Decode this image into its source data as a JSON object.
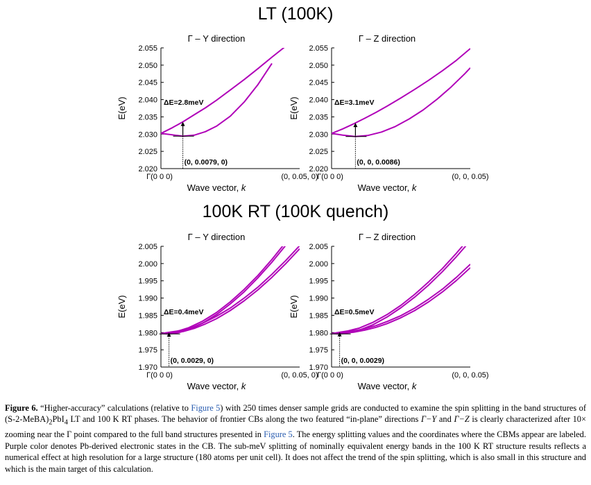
{
  "titles": {
    "top": "LT (100K)",
    "bottom": "100K RT (100K quench)"
  },
  "colors": {
    "band": "#b000b8"
  },
  "chart_data": [
    {
      "type": "line",
      "title": "Γ – Y direction",
      "ylabel": "E(eV)",
      "xlabel": "Wave vector, k",
      "x_tick_labels": [
        "Γ(0 0 0)",
        "(0, 0.05, 0)"
      ],
      "xlim": [
        0,
        0.05
      ],
      "ylim": [
        2.02,
        2.055
      ],
      "yticks": [
        "2.055",
        "2.050",
        "2.045",
        "2.040",
        "2.035",
        "2.030",
        "2.025",
        "2.020"
      ],
      "series": [
        {
          "x": [
            0,
            0.004,
            0.0079,
            0.012,
            0.016,
            0.02,
            0.025,
            0.03,
            0.035,
            0.04
          ],
          "values": [
            2.0302,
            2.0298,
            2.0294,
            2.0297,
            2.0307,
            2.0323,
            2.0352,
            2.0393,
            2.0444,
            2.0505
          ]
        },
        {
          "x": [
            0,
            0.004,
            0.008,
            0.012,
            0.016,
            0.02,
            0.025,
            0.03,
            0.035,
            0.04,
            0.045,
            0.05
          ],
          "values": [
            2.0302,
            2.0318,
            2.0336,
            2.0356,
            2.0376,
            2.0398,
            2.0428,
            2.0458,
            2.049,
            2.0523,
            2.0555,
            2.059
          ]
        }
      ],
      "annotations": [
        {
          "text": "ΔE=2.8meV"
        },
        {
          "text": "(0, 0.0079, 0)"
        }
      ]
    },
    {
      "type": "line",
      "title": "Γ – Z direction",
      "ylabel": "E(eV)",
      "xlabel": "Wave vector, k",
      "x_tick_labels": [
        "Γ(0 0 0)",
        "(0, 0, 0.05)"
      ],
      "xlim": [
        0,
        0.05
      ],
      "ylim": [
        2.02,
        2.055
      ],
      "yticks": [
        "2.055",
        "2.050",
        "2.045",
        "2.040",
        "2.035",
        "2.030",
        "2.025",
        "2.020"
      ],
      "series": [
        {
          "x": [
            0,
            0.004,
            0.0086,
            0.013,
            0.018,
            0.023,
            0.028,
            0.033,
            0.038,
            0.043,
            0.048,
            0.05
          ],
          "values": [
            2.0302,
            2.0297,
            2.0293,
            2.0296,
            2.0306,
            2.0322,
            2.0344,
            2.037,
            2.0401,
            2.0436,
            2.0475,
            2.0492
          ]
        },
        {
          "x": [
            0,
            0.004,
            0.008,
            0.012,
            0.016,
            0.02,
            0.025,
            0.03,
            0.035,
            0.04,
            0.045,
            0.05
          ],
          "values": [
            2.0302,
            2.0315,
            2.033,
            2.0346,
            2.0363,
            2.0381,
            2.0405,
            2.043,
            2.0456,
            2.0484,
            2.0514,
            2.0548
          ]
        }
      ],
      "annotations": [
        {
          "text": "ΔE=3.1meV"
        },
        {
          "text": "(0, 0, 0.0086)"
        }
      ]
    },
    {
      "type": "line",
      "title": "Γ – Y direction",
      "ylabel": "E(eV)",
      "xlabel": "Wave vector, k",
      "x_tick_labels": [
        "Γ(0 0 0)",
        "(0, 0.05, 0)"
      ],
      "xlim": [
        0,
        0.05
      ],
      "ylim": [
        1.97,
        2.005
      ],
      "yticks": [
        "2.005",
        "2.000",
        "1.995",
        "1.990",
        "1.985",
        "1.980",
        "1.975",
        "1.970"
      ],
      "series": [
        {
          "x": [
            0,
            0.0029,
            0.006,
            0.01,
            0.015,
            0.02,
            0.025,
            0.03,
            0.035,
            0.04,
            0.045
          ],
          "values": [
            1.9797,
            1.9796,
            1.9799,
            1.9808,
            1.9827,
            1.9852,
            1.9883,
            1.9918,
            1.9959,
            2.0004,
            2.0053
          ]
        },
        {
          "x": [
            0,
            0.0029,
            0.006,
            0.01,
            0.015,
            0.02,
            0.025,
            0.03,
            0.035,
            0.04,
            0.045
          ],
          "values": [
            1.9797,
            1.98,
            1.9804,
            1.9814,
            1.9833,
            1.9858,
            1.9889,
            1.9925,
            1.9966,
            2.0012,
            2.0062
          ]
        },
        {
          "x": [
            0,
            0.004,
            0.008,
            0.012,
            0.016,
            0.02,
            0.025,
            0.03,
            0.035,
            0.04,
            0.045,
            0.05
          ],
          "values": [
            1.9797,
            1.9799,
            1.9803,
            1.9812,
            1.9825,
            1.984,
            1.9864,
            1.9892,
            1.9924,
            1.996,
            2.0,
            2.0043
          ]
        },
        {
          "x": [
            0,
            0.004,
            0.008,
            0.012,
            0.016,
            0.02,
            0.025,
            0.03,
            0.035,
            0.04,
            0.045,
            0.05
          ],
          "values": [
            1.9797,
            1.9802,
            1.9807,
            1.9817,
            1.9831,
            1.9847,
            1.9871,
            1.99,
            1.9932,
            1.9969,
            2.0009,
            2.0052
          ]
        }
      ],
      "annotations": [
        {
          "text": "ΔE=0.4meV"
        },
        {
          "text": "(0, 0.0029, 0)"
        }
      ]
    },
    {
      "type": "line",
      "title": "Γ – Z direction",
      "ylabel": "E(eV)",
      "xlabel": "Wave vector, k",
      "x_tick_labels": [
        "Γ(0 0 0)",
        "(0, 0, 0.05)"
      ],
      "xlim": [
        0,
        0.05
      ],
      "ylim": [
        1.97,
        2.005
      ],
      "yticks": [
        "2.005",
        "2.000",
        "1.995",
        "1.990",
        "1.985",
        "1.980",
        "1.975",
        "1.970"
      ],
      "series": [
        {
          "x": [
            0,
            0.0029,
            0.006,
            0.01,
            0.015,
            0.02,
            0.025,
            0.03,
            0.035,
            0.04,
            0.045,
            0.05
          ],
          "values": [
            1.9797,
            1.9796,
            1.9799,
            1.9807,
            1.9823,
            1.9845,
            1.9872,
            1.9903,
            1.9938,
            1.9977,
            2.002,
            2.0066
          ]
        },
        {
          "x": [
            0,
            0.0029,
            0.006,
            0.01,
            0.015,
            0.02,
            0.025,
            0.03,
            0.035,
            0.04,
            0.045,
            0.05
          ],
          "values": [
            1.9797,
            1.9801,
            1.9805,
            1.9813,
            1.983,
            1.9852,
            1.9879,
            1.9911,
            1.9947,
            1.9986,
            2.003,
            2.0077
          ]
        },
        {
          "x": [
            0,
            0.004,
            0.008,
            0.012,
            0.016,
            0.02,
            0.025,
            0.03,
            0.035,
            0.04,
            0.045,
            0.05
          ],
          "values": [
            1.9797,
            1.9798,
            1.9801,
            1.9807,
            1.9815,
            1.9826,
            1.9843,
            1.9864,
            1.9889,
            1.9918,
            1.9951,
            1.9988
          ]
        },
        {
          "x": [
            0,
            0.004,
            0.008,
            0.012,
            0.016,
            0.02,
            0.025,
            0.03,
            0.035,
            0.04,
            0.045,
            0.05
          ],
          "values": [
            1.9797,
            1.9801,
            1.9805,
            1.9811,
            1.982,
            1.9832,
            1.9849,
            1.9871,
            1.9897,
            1.9926,
            1.996,
            1.9998
          ]
        }
      ],
      "annotations": [
        {
          "text": "ΔE=0.5meV"
        },
        {
          "text": "(0, 0, 0.0029)"
        }
      ]
    }
  ],
  "caption": {
    "label": "Figure 6.",
    "t1": " “Higher-accuracy” calculations (relative to ",
    "link1": "Figure 5",
    "t2": ") with 250 times denser sample grids are conducted to examine the spin splitting in the band structures of (S-2-MeBA)",
    "sub1": "2",
    "t3": "PbI",
    "sub2": "4",
    "t4": " LT and 100 K RT phases. The behavior of frontier CBs along the two featured “in-plane” directions ",
    "dir1": "Γ−Y",
    "t5": " and ",
    "dir2": "Γ−Z",
    "t6": " is clearly characterized after 10× zooming near the Γ point compared to the full band structures presented in ",
    "link2": "Figure 5",
    "t7": ". The energy splitting values and the coordinates where the CBMs appear are labeled. Purple color denotes Pb-derived electronic states in the CB. The sub-meV splitting of nominally equivalent energy bands in the 100 K RT structure results reflects a numerical effect at high resolution for a large structure (180 atoms per unit cell). It does not affect the trend of the spin splitting, which is also small in this structure and which is the main target of this calculation."
  }
}
